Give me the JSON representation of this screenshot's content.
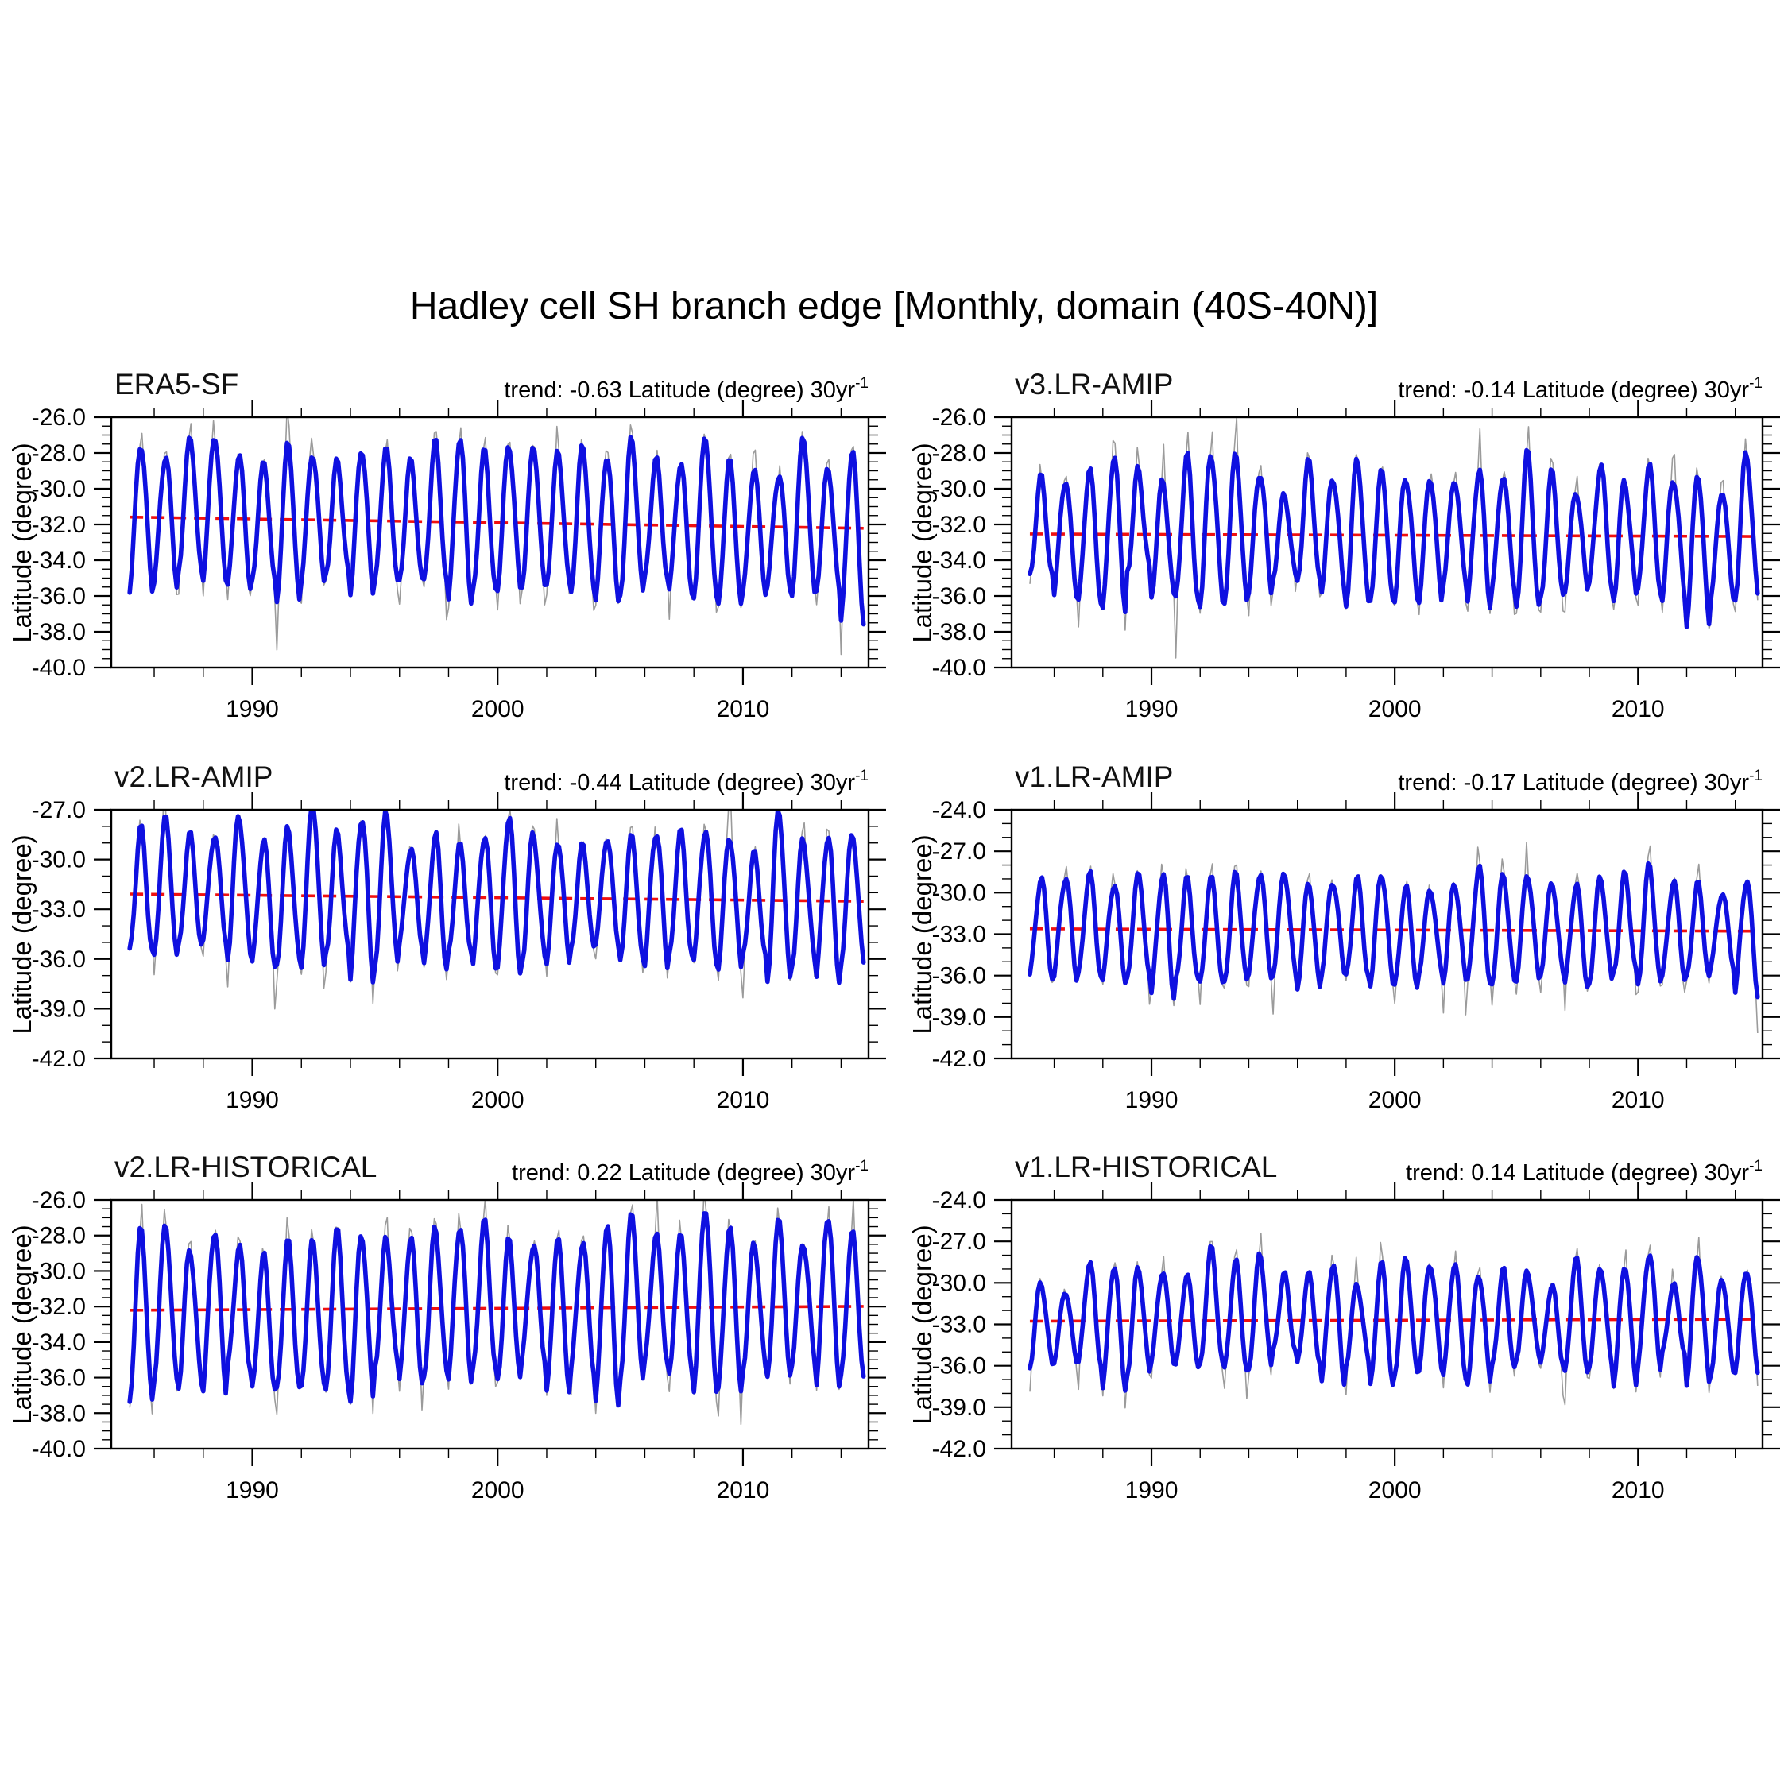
{
  "figure_title": "Hadley cell SH branch edge [Monthly, domain (40S-40N)]",
  "colors": {
    "raw_line": "#9b9b9b",
    "smooth_line": "#0f10e0",
    "trend_line": "#f01010",
    "frame": "#000000",
    "text": "#000000",
    "background": "#ffffff"
  },
  "chart_data": [
    {
      "type": "line",
      "title": "ERA5-SF",
      "trend_label": {
        "prefix": "trend: -0.63 Latitude (degree) 30yr",
        "sup": "-1"
      },
      "trend_per_30yr": -0.63,
      "mean_latitude": -31.9,
      "ylabel": "Latitude (degree)",
      "y_axis": {
        "min": -40.0,
        "max": -26.0,
        "major_step": 2.0,
        "minor_step": 0.5,
        "tick_labels": [
          "-26.0",
          "-28.0",
          "-30.0",
          "-32.0",
          "-34.0",
          "-36.0",
          "-38.0",
          "-40.0"
        ]
      },
      "x_axis": {
        "min": 1984.25,
        "max": 2015.12,
        "major_ticks": [
          1990,
          2000,
          2010
        ],
        "tick_labels": [
          "1990",
          "2000",
          "2010"
        ],
        "minor_step": 2
      },
      "synthesis": {
        "seed": 11,
        "start_year": 1985.0,
        "months": 360,
        "seasonal_amp": 3.95,
        "amp_jitter": 0.1,
        "year_offset_jitter": 0.28,
        "semiannual_amp": 0.34,
        "noise_sd": 0.27,
        "spike_sd": 1.15
      }
    },
    {
      "type": "line",
      "title": "v3.LR-AMIP",
      "trend_label": {
        "prefix": "trend: -0.14 Latitude (degree) 30yr",
        "sup": "-1"
      },
      "trend_per_30yr": -0.14,
      "mean_latitude": -32.6,
      "ylabel": "Latitude (degree)",
      "y_axis": {
        "min": -40.0,
        "max": -26.0,
        "major_step": 2.0,
        "minor_step": 0.5,
        "tick_labels": [
          "-26.0",
          "-28.0",
          "-30.0",
          "-32.0",
          "-34.0",
          "-36.0",
          "-38.0",
          "-40.0"
        ]
      },
      "x_axis": {
        "min": 1984.25,
        "max": 2015.12,
        "major_ticks": [
          1990,
          2000,
          2010
        ],
        "tick_labels": [
          "1990",
          "2000",
          "2010"
        ],
        "minor_step": 2
      },
      "synthesis": {
        "seed": 22,
        "start_year": 1985.0,
        "months": 360,
        "seasonal_amp": 3.55,
        "amp_jitter": 0.16,
        "year_offset_jitter": 0.32,
        "semiannual_amp": 0.45,
        "noise_sd": 0.3,
        "spike_sd": 1.3
      }
    },
    {
      "type": "line",
      "title": "v2.LR-AMIP",
      "trend_label": {
        "prefix": "trend: -0.44 Latitude (degree) 30yr",
        "sup": "-1"
      },
      "trend_per_30yr": -0.44,
      "mean_latitude": -32.3,
      "ylabel": "Latitude (degree)",
      "y_axis": {
        "min": -42.0,
        "max": -27.0,
        "major_step": 3.0,
        "minor_step": 1.0,
        "tick_labels": [
          "-27.0",
          "-30.0",
          "-33.0",
          "-36.0",
          "-39.0",
          "-42.0"
        ]
      },
      "x_axis": {
        "min": 1984.25,
        "max": 2015.12,
        "major_ticks": [
          1990,
          2000,
          2010
        ],
        "tick_labels": [
          "1990",
          "2000",
          "2010"
        ],
        "minor_step": 2
      },
      "synthesis": {
        "seed": 33,
        "start_year": 1985.0,
        "months": 360,
        "seasonal_amp": 3.9,
        "amp_jitter": 0.13,
        "year_offset_jitter": 0.3,
        "semiannual_amp": 0.42,
        "noise_sd": 0.3,
        "spike_sd": 1.2
      }
    },
    {
      "type": "line",
      "title": "v1.LR-AMIP",
      "trend_label": {
        "prefix": "trend: -0.17 Latitude (degree) 30yr",
        "sup": "-1"
      },
      "trend_per_30yr": -0.17,
      "mean_latitude": -32.7,
      "ylabel": "Latitude (degree)",
      "y_axis": {
        "min": -42.0,
        "max": -24.0,
        "major_step": 3.0,
        "minor_step": 1.0,
        "tick_labels": [
          "-24.0",
          "-27.0",
          "-30.0",
          "-33.0",
          "-36.0",
          "-39.0",
          "-42.0"
        ]
      },
      "x_axis": {
        "min": 1984.25,
        "max": 2015.12,
        "major_ticks": [
          1990,
          2000,
          2010
        ],
        "tick_labels": [
          "1990",
          "2000",
          "2010"
        ],
        "minor_step": 2
      },
      "synthesis": {
        "seed": 44,
        "start_year": 1985.0,
        "months": 360,
        "seasonal_amp": 3.75,
        "amp_jitter": 0.15,
        "year_offset_jitter": 0.32,
        "semiannual_amp": 0.46,
        "noise_sd": 0.3,
        "spike_sd": 1.2
      }
    },
    {
      "type": "line",
      "title": "v2.LR-HISTORICAL",
      "trend_label": {
        "prefix": "trend: 0.22 Latitude (degree) 30yr",
        "sup": "-1"
      },
      "trend_per_30yr": 0.22,
      "mean_latitude": -32.1,
      "ylabel": "Latitude (degree)",
      "y_axis": {
        "min": -40.0,
        "max": -26.0,
        "major_step": 2.0,
        "minor_step": 0.5,
        "tick_labels": [
          "-26.0",
          "-28.0",
          "-30.0",
          "-32.0",
          "-34.0",
          "-36.0",
          "-38.0",
          "-40.0"
        ]
      },
      "x_axis": {
        "min": 1984.25,
        "max": 2015.12,
        "major_ticks": [
          1990,
          2000,
          2010
        ],
        "tick_labels": [
          "1990",
          "2000",
          "2010"
        ],
        "minor_step": 2
      },
      "synthesis": {
        "seed": 55,
        "start_year": 1985.0,
        "months": 360,
        "seasonal_amp": 4.3,
        "amp_jitter": 0.12,
        "year_offset_jitter": 0.3,
        "semiannual_amp": 0.36,
        "noise_sd": 0.3,
        "spike_sd": 1.2
      }
    },
    {
      "type": "line",
      "title": "v1.LR-HISTORICAL",
      "trend_label": {
        "prefix": "trend: 0.14 Latitude (degree) 30yr",
        "sup": "-1"
      },
      "trend_per_30yr": 0.14,
      "mean_latitude": -32.7,
      "ylabel": "Latitude (degree)",
      "y_axis": {
        "min": -42.0,
        "max": -24.0,
        "major_step": 3.0,
        "minor_step": 1.0,
        "tick_labels": [
          "-24.0",
          "-27.0",
          "-30.0",
          "-33.0",
          "-36.0",
          "-39.0",
          "-42.0"
        ]
      },
      "x_axis": {
        "min": 1984.25,
        "max": 2015.12,
        "major_ticks": [
          1990,
          2000,
          2010
        ],
        "tick_labels": [
          "1990",
          "2000",
          "2010"
        ],
        "minor_step": 2
      },
      "synthesis": {
        "seed": 66,
        "start_year": 1985.0,
        "months": 360,
        "seasonal_amp": 3.9,
        "amp_jitter": 0.14,
        "year_offset_jitter": 0.32,
        "semiannual_amp": 0.42,
        "noise_sd": 0.3,
        "spike_sd": 1.2
      }
    }
  ]
}
